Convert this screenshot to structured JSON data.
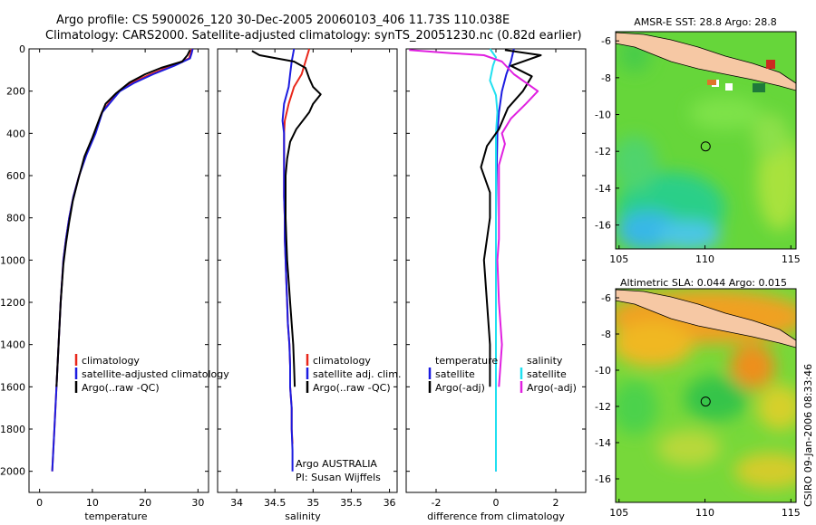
{
  "header": {
    "title_line1": "Argo profile: CS 5900026_120 30-Dec-2005 20060103_406 11.73S 110.038E",
    "title_line2": "Climatology: CARS2000. Satellite-adjusted climatology: synTS_20051230.nc (0.82d earlier)"
  },
  "footer": {
    "credit": "CSIRO 09-Jan-2006 08:33:46",
    "argo_note_1": "Argo AUSTRALIA",
    "argo_note_2": "PI: Susan Wijffels"
  },
  "colors": {
    "climatology": "#e8261a",
    "satellite": "#1c1ce0",
    "argo": "#000000",
    "salinity_sat": "#20e0f0",
    "salinity_argo": "#e020e0"
  },
  "chart_data": [
    {
      "type": "line",
      "xlabel": "temperature",
      "ylabel": "",
      "xlim": [
        -2,
        32
      ],
      "ylim": [
        2100,
        0
      ],
      "y_reversed": true,
      "xticks": [
        0,
        10,
        20,
        30
      ],
      "yticks": [
        0,
        200,
        400,
        600,
        800,
        1000,
        1200,
        1400,
        1600,
        1800,
        2000
      ],
      "legend": [
        "climatology",
        "satellite-adjusted climatology",
        "Argo(..raw -QC)"
      ],
      "series": [
        {
          "name": "climatology",
          "color": "#e8261a",
          "points": [
            [
              28.8,
              0
            ],
            [
              28.6,
              20
            ],
            [
              28.3,
              45
            ],
            [
              25,
              80
            ],
            [
              21,
              120
            ],
            [
              17.5,
              160
            ],
            [
              15,
              200
            ],
            [
              13,
              260
            ],
            [
              11.8,
              300
            ],
            [
              10.5,
              400
            ],
            [
              8.8,
              500
            ],
            [
              7.5,
              600
            ],
            [
              6.4,
              700
            ],
            [
              5.6,
              800
            ],
            [
              5,
              900
            ],
            [
              4.5,
              1000
            ],
            [
              4,
              1200
            ],
            [
              3.6,
              1400
            ],
            [
              3.2,
              1600
            ],
            [
              2.8,
              1800
            ],
            [
              2.4,
              2000
            ]
          ]
        },
        {
          "name": "satellite-adjusted climatology",
          "color": "#1c1ce0",
          "points": [
            [
              29,
              0
            ],
            [
              28.8,
              20
            ],
            [
              28.5,
              45
            ],
            [
              25.5,
              80
            ],
            [
              21.5,
              120
            ],
            [
              18,
              160
            ],
            [
              15.2,
              200
            ],
            [
              13.2,
              260
            ],
            [
              11.9,
              300
            ],
            [
              10.6,
              400
            ],
            [
              8.9,
              500
            ],
            [
              7.5,
              600
            ],
            [
              6.4,
              700
            ],
            [
              5.6,
              800
            ],
            [
              5,
              900
            ],
            [
              4.5,
              1000
            ],
            [
              4,
              1200
            ],
            [
              3.6,
              1400
            ],
            [
              3.2,
              1600
            ],
            [
              2.8,
              1800
            ],
            [
              2.4,
              2000
            ]
          ]
        },
        {
          "name": "Argo(..raw -QC)",
          "color": "#000000",
          "points": [
            [
              28.5,
              5
            ],
            [
              28,
              30
            ],
            [
              27,
              60
            ],
            [
              23,
              90
            ],
            [
              20,
              120
            ],
            [
              17,
              160
            ],
            [
              14.5,
              210
            ],
            [
              12.5,
              260
            ],
            [
              11.5,
              320
            ],
            [
              10,
              420
            ],
            [
              8.5,
              510
            ],
            [
              7.3,
              620
            ],
            [
              6.3,
              720
            ],
            [
              5.6,
              820
            ],
            [
              5,
              920
            ],
            [
              4.5,
              1020
            ],
            [
              4,
              1200
            ],
            [
              3.6,
              1400
            ],
            [
              3.2,
              1600
            ]
          ]
        }
      ]
    },
    {
      "type": "line",
      "xlabel": "salinity",
      "ylabel": "",
      "xlim": [
        33.75,
        36.1
      ],
      "ylim": [
        2100,
        0
      ],
      "y_reversed": true,
      "xticks": [
        34,
        34.5,
        35,
        35.5,
        36
      ],
      "legend": [
        "climatology",
        "satellite adj. clim.",
        "Argo(..raw -QC)"
      ],
      "series": [
        {
          "name": "climatology",
          "color": "#e8261a",
          "points": [
            [
              34.95,
              0
            ],
            [
              34.9,
              60
            ],
            [
              34.85,
              120
            ],
            [
              34.75,
              180
            ],
            [
              34.68,
              260
            ],
            [
              34.63,
              340
            ],
            [
              34.62,
              400
            ],
            [
              34.62,
              500
            ],
            [
              34.62,
              600
            ],
            [
              34.62,
              700
            ],
            [
              34.63,
              800
            ],
            [
              34.63,
              900
            ],
            [
              34.64,
              1000
            ],
            [
              34.65,
              1100
            ],
            [
              34.66,
              1200
            ],
            [
              34.67,
              1300
            ],
            [
              34.69,
              1400
            ],
            [
              34.7,
              1500
            ],
            [
              34.7,
              1600
            ],
            [
              34.72,
              1700
            ],
            [
              34.72,
              1800
            ],
            [
              34.73,
              1870
            ]
          ]
        },
        {
          "name": "satellite adj. clim.",
          "color": "#1c1ce0",
          "points": [
            [
              34.75,
              0
            ],
            [
              34.72,
              60
            ],
            [
              34.7,
              120
            ],
            [
              34.68,
              180
            ],
            [
              34.62,
              260
            ],
            [
              34.6,
              340
            ],
            [
              34.62,
              400
            ],
            [
              34.62,
              500
            ],
            [
              34.62,
              600
            ],
            [
              34.62,
              700
            ],
            [
              34.63,
              800
            ],
            [
              34.63,
              900
            ],
            [
              34.64,
              1000
            ],
            [
              34.65,
              1100
            ],
            [
              34.66,
              1200
            ],
            [
              34.67,
              1300
            ],
            [
              34.69,
              1400
            ],
            [
              34.7,
              1500
            ],
            [
              34.7,
              1600
            ],
            [
              34.72,
              1700
            ],
            [
              34.72,
              1800
            ],
            [
              34.73,
              1900
            ],
            [
              34.73,
              2000
            ]
          ]
        },
        {
          "name": "Argo(..raw -QC)",
          "color": "#000000",
          "points": [
            [
              34.2,
              10
            ],
            [
              34.3,
              30
            ],
            [
              34.75,
              60
            ],
            [
              34.9,
              90
            ],
            [
              34.95,
              140
            ],
            [
              35.0,
              180
            ],
            [
              35.1,
              215
            ],
            [
              35.0,
              260
            ],
            [
              34.95,
              300
            ],
            [
              34.78,
              380
            ],
            [
              34.7,
              440
            ],
            [
              34.66,
              520
            ],
            [
              34.64,
              600
            ],
            [
              34.64,
              700
            ],
            [
              34.64,
              800
            ],
            [
              34.65,
              900
            ],
            [
              34.66,
              1000
            ],
            [
              34.68,
              1100
            ],
            [
              34.7,
              1200
            ],
            [
              34.72,
              1300
            ],
            [
              34.74,
              1400
            ],
            [
              34.75,
              1500
            ],
            [
              34.76,
              1600
            ]
          ]
        }
      ]
    },
    {
      "type": "line",
      "xlabel": "difference from climatology",
      "ylabel": "",
      "xlim": [
        -3,
        3
      ],
      "ylim": [
        2100,
        0
      ],
      "y_reversed": true,
      "xticks": [
        -2,
        0,
        2
      ],
      "legend": [
        {
          "group": "temperature",
          "items": [
            "satellite",
            "Argo(-adj)"
          ]
        },
        {
          "group": "salinity",
          "items": [
            "satellite",
            "Argo(-adj)"
          ]
        }
      ],
      "series": [
        {
          "name": "temperature satellite",
          "color": "#1c1ce0",
          "points": [
            [
              0.6,
              0
            ],
            [
              0.5,
              60
            ],
            [
              0.35,
              120
            ],
            [
              0.2,
              200
            ],
            [
              0.1,
              300
            ],
            [
              0.05,
              400
            ],
            [
              0.02,
              600
            ],
            [
              0,
              800
            ],
            [
              0,
              1000
            ],
            [
              0,
              1200
            ],
            [
              0,
              1400
            ],
            [
              0,
              1600
            ],
            [
              0,
              1800
            ],
            [
              0,
              2000
            ]
          ]
        },
        {
          "name": "salinity satellite",
          "color": "#20e0f0",
          "points": [
            [
              -0.2,
              0
            ],
            [
              0,
              40
            ],
            [
              -0.1,
              80
            ],
            [
              -0.2,
              150
            ],
            [
              0,
              220
            ],
            [
              0.05,
              300
            ],
            [
              0,
              400
            ],
            [
              0,
              600
            ],
            [
              0,
              800
            ],
            [
              0,
              1000
            ],
            [
              0,
              1200
            ],
            [
              0,
              1400
            ],
            [
              0,
              1600
            ],
            [
              0,
              1800
            ],
            [
              0,
              2000
            ]
          ]
        },
        {
          "name": "temperature Argo(-adj)",
          "color": "#000000",
          "points": [
            [
              0.3,
              5
            ],
            [
              1.5,
              30
            ],
            [
              0.5,
              80
            ],
            [
              1.2,
              130
            ],
            [
              0.9,
              200
            ],
            [
              0.4,
              280
            ],
            [
              0.1,
              380
            ],
            [
              -0.3,
              460
            ],
            [
              -0.5,
              560
            ],
            [
              -0.2,
              680
            ],
            [
              -0.2,
              800
            ],
            [
              -0.3,
              900
            ],
            [
              -0.4,
              1000
            ],
            [
              -0.3,
              1200
            ],
            [
              -0.2,
              1400
            ],
            [
              -0.2,
              1600
            ]
          ]
        },
        {
          "name": "salinity Argo(-adj)",
          "color": "#e020e0",
          "points": [
            [
              -2.9,
              5
            ],
            [
              -1.5,
              20
            ],
            [
              -0.4,
              30
            ],
            [
              0.2,
              60
            ],
            [
              0.6,
              120
            ],
            [
              1.4,
              200
            ],
            [
              1.0,
              260
            ],
            [
              0.5,
              330
            ],
            [
              0.2,
              400
            ],
            [
              0.3,
              450
            ],
            [
              0.1,
              550
            ],
            [
              0.1,
              700
            ],
            [
              0.1,
              900
            ],
            [
              0.05,
              1000
            ],
            [
              0.1,
              1200
            ],
            [
              0.2,
              1400
            ],
            [
              0.1,
              1600
            ]
          ]
        }
      ]
    },
    {
      "type": "heatmap",
      "title": "AMSR-E SST: 28.8 Argo: 28.8",
      "xlim": [
        104.8,
        115.3
      ],
      "ylim": [
        -17.3,
        -5.5
      ],
      "xticks": [
        105,
        110,
        115
      ],
      "yticks": [
        -6,
        -8,
        -10,
        -12,
        -14,
        -16
      ],
      "marker": {
        "lon": 110.038,
        "lat": -11.73
      }
    },
    {
      "type": "heatmap",
      "title": "Altimetric SLA: 0.044 Argo: 0.015",
      "xlim": [
        104.8,
        115.3
      ],
      "ylim": [
        -17.3,
        -5.5
      ],
      "xticks": [
        105,
        110,
        115
      ],
      "yticks": [
        -6,
        -8,
        -10,
        -12,
        -14,
        -16
      ],
      "marker": {
        "lon": 110.038,
        "lat": -11.73
      }
    }
  ]
}
